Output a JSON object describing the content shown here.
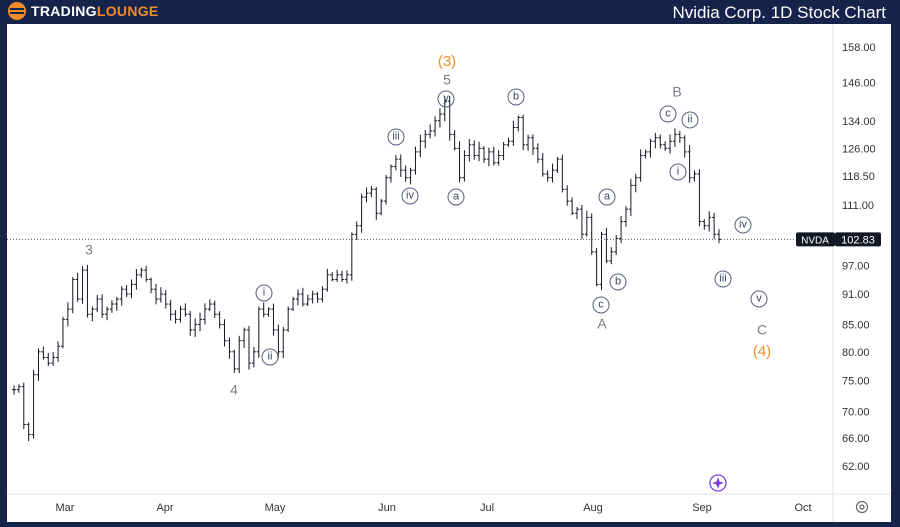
{
  "header": {
    "logo_a": "TRADING",
    "logo_b": "LOUNGE",
    "title": "Nvidia Corp. 1D Stock Chart"
  },
  "chart_data": {
    "type": "ohlc",
    "title": "Nvidia Corp. 1D Stock Chart",
    "symbol": "NVDA",
    "last_price": "102.83",
    "y_scale": "log",
    "ylim": [
      59,
      166
    ],
    "y_ticks": [
      "158.00",
      "146.00",
      "134.00",
      "126.00",
      "118.50",
      "111.00",
      "97.00",
      "91.00",
      "85.00",
      "80.00",
      "75.00",
      "70.00",
      "66.00",
      "62.00"
    ],
    "x_ticks": [
      "Mar",
      "Apr",
      "May",
      "Jun",
      "Jul",
      "Aug",
      "Sep",
      "Oct"
    ],
    "closes": [
      73.5,
      74,
      68,
      66.5,
      76,
      80,
      79,
      78,
      79,
      81,
      86,
      88,
      94,
      90,
      96,
      87,
      88,
      90,
      87,
      88,
      89,
      90,
      92,
      91,
      93,
      95,
      96,
      94,
      92,
      90,
      91,
      89,
      87,
      86,
      88,
      87,
      84,
      85,
      86,
      88,
      89,
      87,
      85,
      82,
      80,
      77,
      82,
      84,
      78,
      80,
      88,
      87,
      88,
      84,
      80,
      84,
      88,
      90,
      91,
      89,
      90,
      91,
      90,
      92,
      95,
      94,
      95,
      94,
      95,
      104,
      106,
      113,
      114,
      115,
      109,
      112,
      118,
      121,
      123,
      120,
      118,
      120,
      125,
      128,
      130,
      131,
      134,
      136,
      140,
      130,
      126,
      118,
      124,
      127,
      124,
      126,
      123,
      125,
      122,
      124,
      127,
      128,
      132,
      135,
      127,
      129,
      126,
      123,
      119,
      118,
      120,
      123,
      115,
      112,
      109,
      110,
      104,
      108,
      100,
      93,
      104,
      98,
      100,
      103,
      107,
      110,
      116,
      118,
      124,
      125,
      128,
      129,
      127,
      126,
      128,
      130,
      129,
      125,
      118,
      119,
      107,
      106,
      108,
      104,
      102.83
    ],
    "wave_labels": {
      "w3": "3",
      "w4": "4",
      "w3p": "(3)",
      "w5": "5",
      "y": "y",
      "iii": "iii",
      "iv": "iv",
      "a1": "a",
      "b1": "b",
      "B": "B",
      "c2": "c",
      "ii2": "ii",
      "i2": "i",
      "a2": "a",
      "b2": "b",
      "c3": "c",
      "A": "A",
      "iv3": "iv",
      "iii3": "iii",
      "v3": "v",
      "C": "C",
      "w4p": "(4)",
      "i1": "i",
      "ii1": "ii"
    },
    "colors": {
      "bar": "#131722",
      "orange": "#f28c28",
      "label_gray": "#7a7d84",
      "purple": "#7b3fe4"
    }
  }
}
